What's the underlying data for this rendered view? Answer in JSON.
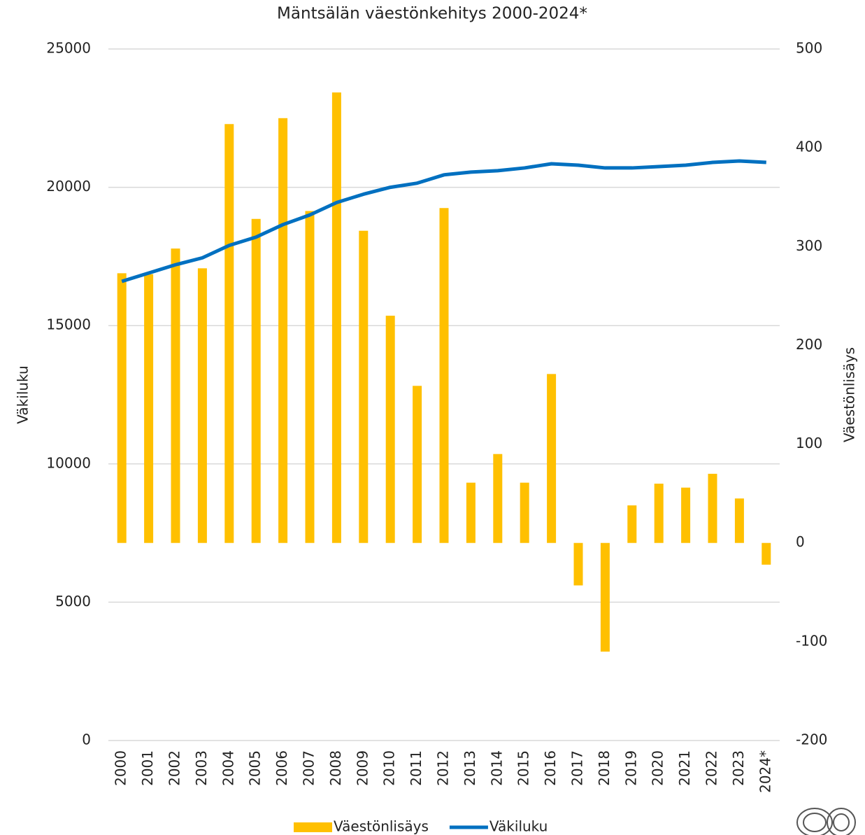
{
  "chart_data": {
    "type": "combo",
    "title": "Mäntsälän väestönkehitys 2000-2024*",
    "categories": [
      "2000",
      "2001",
      "2002",
      "2003",
      "2004",
      "2005",
      "2006",
      "2007",
      "2008",
      "2009",
      "2010",
      "2011",
      "2012",
      "2013",
      "2014",
      "2015",
      "2016",
      "2017",
      "2018",
      "2019",
      "2020",
      "2021",
      "2022",
      "2023",
      "2024*"
    ],
    "series": [
      {
        "name": "Väestönlisäys",
        "type": "bar",
        "axis": "y2",
        "color": "#ffc000",
        "values": [
          273,
          272,
          298,
          278,
          424,
          328,
          430,
          336,
          456,
          316,
          230,
          159,
          339,
          61,
          90,
          61,
          171,
          -43,
          -110,
          38,
          60,
          56,
          70,
          45,
          -22
        ]
      },
      {
        "name": "Väkiluku",
        "type": "line",
        "color": "#0070c0",
        "values": [
          16600,
          16900,
          17200,
          17450,
          17900,
          18200,
          18650,
          19000,
          19450,
          19750,
          20000,
          20150,
          20450,
          20550,
          20600,
          20700,
          20850,
          20800,
          20700,
          20700,
          20750,
          20800,
          20900,
          20950,
          20900
        ]
      }
    ],
    "ylabel": "Väkiluku",
    "y2label": "Väestönlisäys",
    "ylim": [
      0,
      25000
    ],
    "yticks": [
      0,
      5000,
      10000,
      15000,
      20000,
      25000
    ],
    "y2lim": [
      -200,
      500
    ],
    "y2ticks": [
      -200,
      -100,
      0,
      100,
      200,
      300,
      400,
      500
    ],
    "grid": true,
    "legend": "bottom"
  }
}
